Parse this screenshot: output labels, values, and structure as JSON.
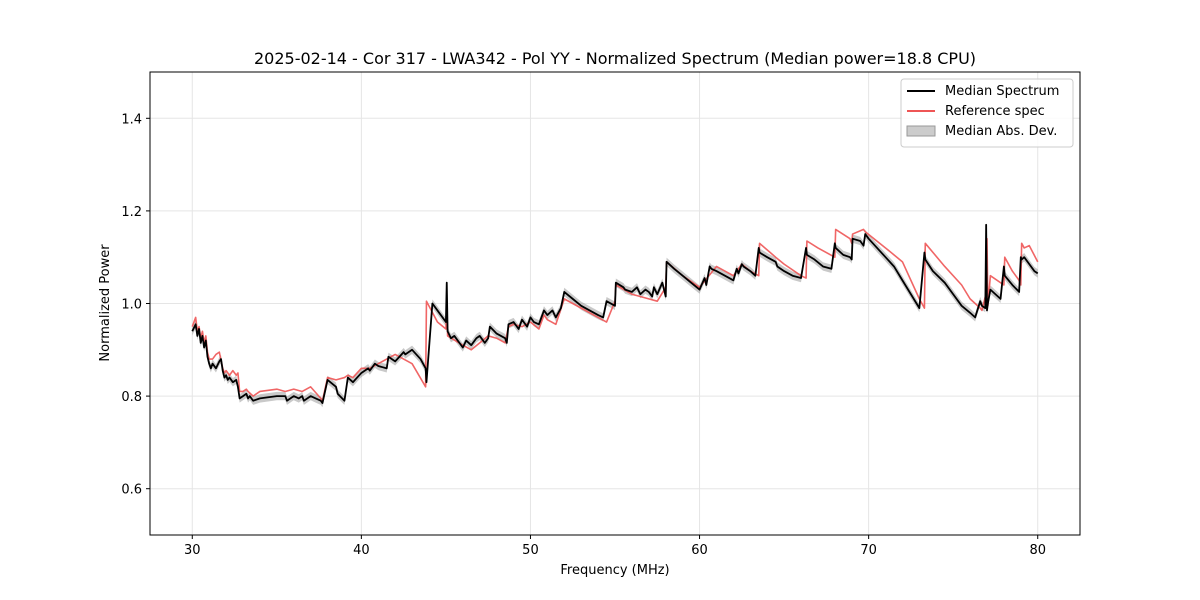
{
  "chart_data": {
    "type": "line",
    "title": "2025-02-14 - Cor 317 - LWA342 - Pol YY - Normalized Spectrum (Median power=18.8 CPU)",
    "xlabel": "Frequency (MHz)",
    "ylabel": "Normalized Power",
    "xlim": [
      27.5,
      82.5
    ],
    "ylim": [
      0.5,
      1.5
    ],
    "xticks": [
      30,
      40,
      50,
      60,
      70,
      80
    ],
    "yticks": [
      0.6,
      0.8,
      1.0,
      1.2,
      1.4
    ],
    "xtick_labels": [
      "30",
      "40",
      "50",
      "60",
      "70",
      "80"
    ],
    "ytick_labels": [
      "0.6",
      "0.8",
      "1.0",
      "1.2",
      "1.4"
    ],
    "grid": true,
    "legend_position": "top-right",
    "series": [
      {
        "name": "Median Spectrum",
        "color": "#000000",
        "x": [
          30.0,
          30.2,
          30.3,
          30.4,
          30.5,
          30.6,
          30.7,
          30.8,
          30.9,
          31.0,
          31.1,
          31.2,
          31.4,
          31.6,
          31.7,
          31.8,
          31.9,
          32.0,
          32.1,
          32.2,
          32.4,
          32.6,
          32.7,
          32.8,
          33.0,
          33.2,
          33.3,
          33.4,
          33.6,
          34.0,
          35.0,
          35.5,
          35.6,
          36.0,
          36.3,
          36.5,
          36.6,
          37.0,
          37.3,
          37.6,
          37.7,
          38.0,
          38.5,
          38.6,
          39.0,
          39.2,
          39.5,
          40.0,
          40.4,
          40.5,
          40.8,
          41.0,
          41.5,
          41.6,
          42.0,
          42.5,
          42.6,
          43.0,
          43.5,
          43.8,
          43.85,
          44.2,
          44.7,
          45.0,
          45.05,
          45.1,
          45.3,
          45.5,
          46.0,
          46.2,
          46.5,
          46.8,
          47.0,
          47.3,
          47.5,
          47.6,
          48.0,
          48.5,
          48.6,
          48.7,
          49.0,
          49.3,
          49.5,
          49.8,
          50.0,
          50.2,
          50.5,
          50.8,
          51.0,
          51.3,
          51.5,
          51.8,
          52.0,
          52.5,
          53.0,
          53.5,
          54.0,
          54.3,
          54.5,
          55.0,
          55.05,
          55.5,
          55.6,
          56.0,
          56.3,
          56.5,
          56.8,
          57.0,
          57.2,
          57.3,
          57.5,
          57.8,
          58.0,
          58.05,
          58.5,
          59.0,
          59.5,
          60.0,
          60.3,
          60.4,
          60.6,
          60.7,
          61.0,
          61.5,
          62.0,
          62.2,
          62.3,
          62.5,
          62.6,
          63.0,
          63.3,
          63.5,
          63.55,
          64.0,
          64.5,
          64.6,
          65.0,
          65.5,
          66.0,
          66.3,
          66.35,
          66.8,
          67.3,
          67.8,
          68.0,
          68.05,
          68.5,
          68.9,
          69.0,
          69.05,
          69.5,
          69.7,
          69.8,
          70.0,
          70.5,
          71.0,
          71.5,
          72.0,
          72.5,
          73.0,
          73.3,
          73.35,
          73.8,
          74.5,
          75.0,
          75.5,
          76.0,
          76.3,
          76.6,
          76.7,
          76.9,
          76.95,
          77.0,
          77.05,
          77.2,
          77.5,
          77.8,
          78.0,
          78.05,
          78.5,
          78.9,
          79.0,
          79.05,
          79.2,
          79.5,
          79.8,
          80.0
        ],
        "y": [
          0.94,
          0.955,
          0.93,
          0.945,
          0.915,
          0.93,
          0.905,
          0.92,
          0.885,
          0.87,
          0.86,
          0.87,
          0.86,
          0.875,
          0.88,
          0.855,
          0.84,
          0.845,
          0.835,
          0.84,
          0.83,
          0.835,
          0.82,
          0.795,
          0.8,
          0.805,
          0.795,
          0.8,
          0.79,
          0.795,
          0.8,
          0.8,
          0.79,
          0.8,
          0.795,
          0.8,
          0.79,
          0.8,
          0.795,
          0.79,
          0.785,
          0.835,
          0.82,
          0.805,
          0.79,
          0.84,
          0.83,
          0.85,
          0.86,
          0.855,
          0.87,
          0.865,
          0.86,
          0.885,
          0.875,
          0.895,
          0.89,
          0.9,
          0.88,
          0.86,
          0.83,
          1.0,
          0.975,
          0.96,
          1.045,
          0.94,
          0.925,
          0.93,
          0.905,
          0.92,
          0.91,
          0.925,
          0.93,
          0.915,
          0.925,
          0.95,
          0.935,
          0.925,
          0.915,
          0.955,
          0.96,
          0.945,
          0.965,
          0.95,
          0.97,
          0.96,
          0.955,
          0.985,
          0.975,
          0.985,
          0.97,
          0.99,
          1.025,
          1.01,
          0.995,
          0.985,
          0.975,
          0.97,
          1.005,
          0.995,
          1.045,
          1.035,
          1.03,
          1.025,
          1.035,
          1.02,
          1.03,
          1.025,
          1.015,
          1.035,
          1.02,
          1.045,
          1.015,
          1.09,
          1.075,
          1.06,
          1.045,
          1.03,
          1.055,
          1.04,
          1.08,
          1.075,
          1.07,
          1.06,
          1.05,
          1.075,
          1.065,
          1.085,
          1.08,
          1.07,
          1.06,
          1.12,
          1.11,
          1.1,
          1.09,
          1.08,
          1.07,
          1.06,
          1.055,
          1.12,
          1.105,
          1.095,
          1.08,
          1.075,
          1.13,
          1.12,
          1.105,
          1.1,
          1.095,
          1.14,
          1.135,
          1.125,
          1.15,
          1.14,
          1.12,
          1.1,
          1.08,
          1.05,
          1.02,
          0.99,
          1.11,
          1.095,
          1.07,
          1.045,
          1.02,
          0.995,
          0.98,
          0.97,
          1.005,
          0.995,
          0.99,
          1.17,
          0.985,
          1.0,
          1.03,
          1.02,
          1.01,
          1.08,
          1.06,
          1.04,
          1.025,
          1.1,
          1.095,
          1.1,
          1.085,
          1.07,
          1.065
        ]
      },
      {
        "name": "Reference spec",
        "color": "#ee5555",
        "x": [
          30.0,
          30.2,
          30.3,
          30.4,
          30.5,
          30.6,
          30.7,
          30.8,
          30.9,
          31.0,
          31.2,
          31.4,
          31.6,
          31.8,
          31.9,
          32.0,
          32.2,
          32.4,
          32.6,
          32.7,
          32.8,
          33.0,
          33.2,
          33.3,
          33.6,
          34.0,
          35.0,
          35.5,
          36.0,
          36.5,
          37.0,
          37.6,
          37.7,
          38.0,
          38.5,
          39.0,
          39.2,
          39.5,
          40.0,
          40.5,
          41.0,
          41.5,
          42.0,
          42.5,
          43.0,
          43.8,
          43.85,
          44.5,
          45.0,
          45.05,
          45.1,
          46.0,
          46.5,
          47.0,
          47.5,
          48.0,
          48.5,
          48.7,
          49.0,
          49.5,
          50.0,
          50.5,
          50.8,
          51.0,
          51.5,
          52.0,
          53.0,
          54.0,
          54.5,
          55.0,
          55.05,
          56.0,
          57.0,
          57.5,
          58.0,
          58.05,
          59.0,
          60.0,
          61.0,
          62.0,
          62.5,
          63.0,
          63.5,
          63.55,
          64.5,
          65.0,
          66.0,
          66.3,
          66.35,
          67.0,
          68.0,
          68.05,
          68.9,
          69.0,
          69.05,
          69.7,
          69.8,
          71.0,
          72.0,
          73.0,
          73.3,
          73.35,
          74.5,
          75.5,
          76.0,
          76.6,
          76.7,
          76.9,
          76.95,
          77.0,
          77.05,
          77.2,
          78.0,
          78.05,
          78.5,
          78.9,
          79.0,
          79.05,
          79.2,
          79.5,
          80.0
        ],
        "y": [
          0.95,
          0.97,
          0.94,
          0.95,
          0.925,
          0.94,
          0.915,
          0.93,
          0.895,
          0.88,
          0.88,
          0.89,
          0.895,
          0.86,
          0.85,
          0.855,
          0.845,
          0.855,
          0.845,
          0.85,
          0.81,
          0.81,
          0.815,
          0.81,
          0.8,
          0.81,
          0.815,
          0.81,
          0.815,
          0.81,
          0.82,
          0.795,
          0.79,
          0.84,
          0.835,
          0.84,
          0.845,
          0.84,
          0.86,
          0.86,
          0.87,
          0.88,
          0.89,
          0.88,
          0.87,
          0.82,
          1.005,
          0.96,
          0.945,
          1.0,
          0.93,
          0.91,
          0.9,
          0.915,
          0.93,
          0.925,
          0.915,
          0.95,
          0.955,
          0.95,
          0.96,
          0.945,
          0.975,
          0.965,
          0.955,
          1.01,
          0.99,
          0.97,
          0.96,
          1.005,
          1.04,
          1.02,
          1.01,
          1.005,
          1.035,
          1.09,
          1.06,
          1.035,
          1.08,
          1.06,
          1.085,
          1.07,
          1.06,
          1.13,
          1.1,
          1.085,
          1.06,
          1.055,
          1.135,
          1.12,
          1.1,
          1.16,
          1.14,
          1.13,
          1.15,
          1.16,
          1.155,
          1.12,
          1.09,
          1.01,
          0.99,
          1.13,
          1.08,
          1.04,
          1.01,
          0.99,
          0.985,
          1.015,
          1.0,
          1.14,
          0.995,
          1.06,
          1.04,
          1.1,
          1.07,
          1.05,
          1.04,
          1.13,
          1.12,
          1.125,
          1.09
        ]
      }
    ],
    "band": {
      "name": "Median Abs. Dev.",
      "color": "#888888",
      "opacity": 0.45,
      "half_width": 0.009,
      "follows": "Median Spectrum"
    },
    "legend": [
      {
        "label": "Median Spectrum",
        "kind": "line",
        "color": "#000000"
      },
      {
        "label": "Reference spec",
        "kind": "line",
        "color": "#ee5555"
      },
      {
        "label": "Median Abs. Dev.",
        "kind": "patch",
        "color": "#cccccc"
      }
    ]
  }
}
